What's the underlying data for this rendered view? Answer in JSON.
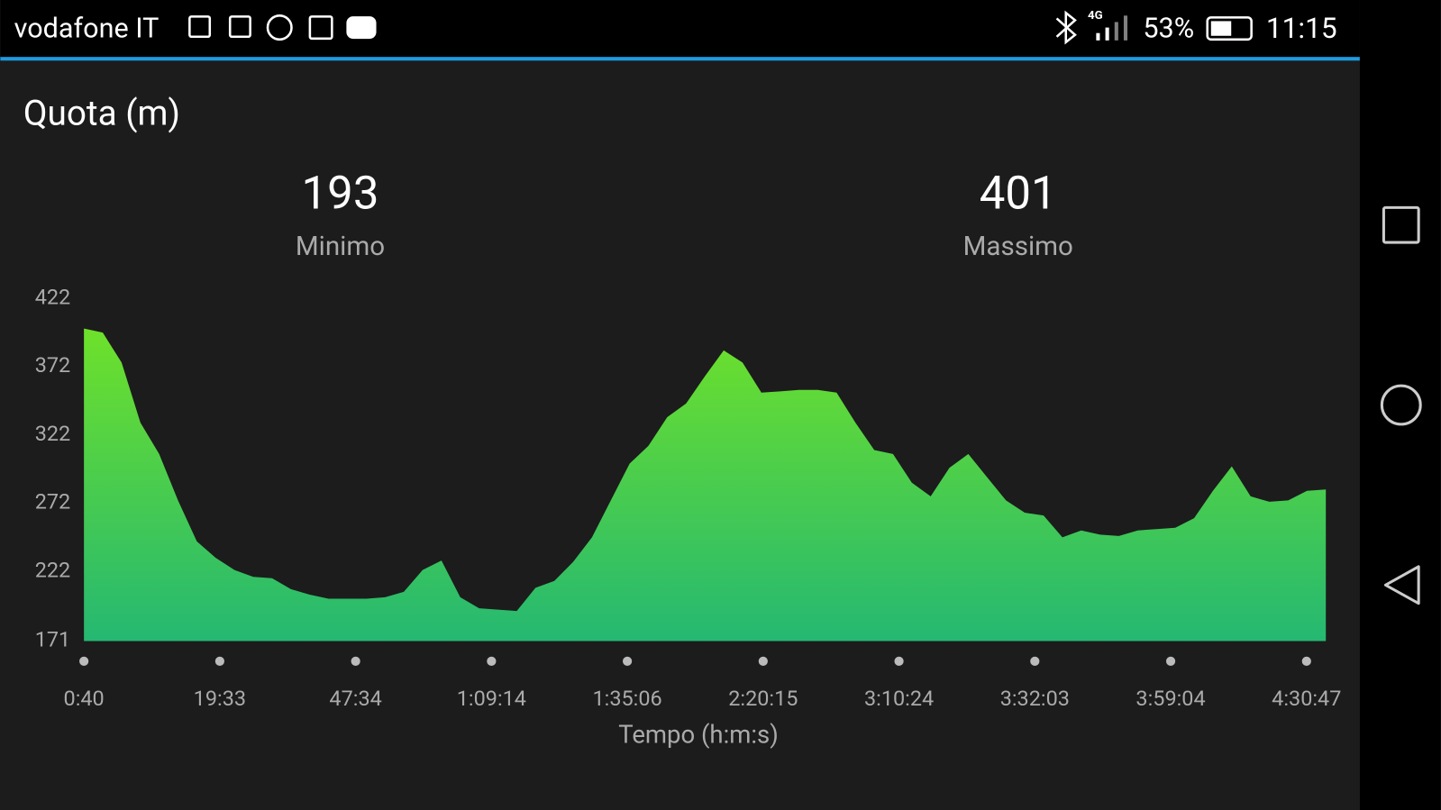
{
  "status_bar": {
    "carrier": "vodafone IT",
    "network": "4G",
    "battery": "53%",
    "time": "11:15"
  },
  "chart_data": {
    "type": "area",
    "title": "Quota (m)",
    "stats": [
      {
        "value": 193,
        "label": "Minimo"
      },
      {
        "value": 401,
        "label": "Massimo"
      }
    ],
    "x_label": "Tempo (h:m:s)",
    "xticks": [
      "0:40",
      "19:33",
      "47:34",
      "1:09:14",
      "1:35:06",
      "2:20:15",
      "3:10:24",
      "3:32:03",
      "3:59:04",
      "4:30:47"
    ],
    "values": [
      400,
      397,
      375,
      331,
      308,
      274,
      244,
      232,
      223,
      218,
      217,
      209,
      205,
      202,
      202,
      202,
      203,
      207,
      223,
      230,
      203,
      195,
      194,
      193,
      210,
      215,
      229,
      247,
      274,
      301,
      314,
      335,
      345,
      365,
      384,
      375,
      353,
      354,
      355,
      355,
      353,
      331,
      311,
      308,
      287,
      277,
      298,
      308,
      291,
      274,
      265,
      263,
      247,
      252,
      249,
      248,
      252,
      253,
      254,
      261,
      281,
      299,
      277,
      273,
      274,
      281,
      282
    ],
    "ylim": [
      171,
      422
    ],
    "yticks": [
      171,
      222,
      272,
      322,
      372,
      422
    ],
    "color_top": "#6ee12a",
    "color_bottom": "#25b872",
    "grid": false
  }
}
